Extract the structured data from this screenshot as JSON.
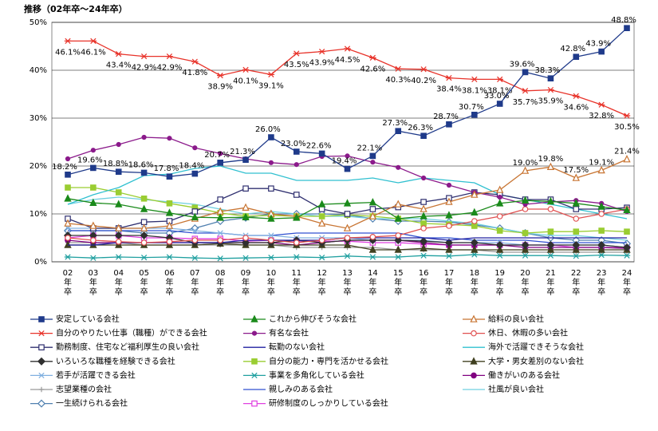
{
  "chart_data": {
    "type": "line",
    "title": "推移（02年卒～24年卒）",
    "categories": [
      "02年卒",
      "03年卒",
      "04年卒",
      "05年卒",
      "06年卒",
      "07年卒",
      "08年卒",
      "09年卒",
      "10年卒",
      "11年卒",
      "12年卒",
      "13年卒",
      "14年卒",
      "15年卒",
      "16年卒",
      "17年卒",
      "18年卒",
      "19年卒",
      "20年卒",
      "21年卒",
      "22年卒",
      "23年卒",
      "24年卒"
    ],
    "ylim": [
      0,
      50
    ],
    "yticks": [
      {
        "value": 0,
        "label": "0%"
      },
      {
        "value": 10,
        "label": "10%"
      },
      {
        "value": 20,
        "label": "20%"
      },
      {
        "value": 30,
        "label": "30%"
      },
      {
        "value": 40,
        "label": "40%"
      },
      {
        "value": 50,
        "label": "50%"
      }
    ],
    "grid": true,
    "series": [
      {
        "name": "安定している会社",
        "color": "#1f3a8a",
        "marker": "square",
        "filled": true,
        "values": [
          18.2,
          19.6,
          18.8,
          18.6,
          17.8,
          18.4,
          20.7,
          21.3,
          26.0,
          23.0,
          22.6,
          19.4,
          22.1,
          27.3,
          26.3,
          28.7,
          30.7,
          33.0,
          39.6,
          38.3,
          42.8,
          43.9,
          48.8
        ],
        "value_labels": [
          "18.2%",
          "19.6%",
          "18.8%",
          "18.6%",
          "17.8%",
          "18.4%",
          "20.7%",
          "21.3%",
          "26.0%",
          "23.0%",
          "22.6%",
          "19.4%",
          "22.1%",
          "27.3%",
          "26.3%",
          "28.7%",
          "30.7%",
          "33.0%",
          "39.6%",
          "38.3%",
          "42.8%",
          "43.9%",
          "48.8%"
        ]
      },
      {
        "name": "これから伸びそうな会社",
        "color": "#1a8a1a",
        "marker": "triangle",
        "filled": true,
        "values": [
          13.2,
          12.3,
          12,
          11,
          10.2,
          9.3,
          9.2,
          9.3,
          9,
          9.2,
          12,
          12.2,
          12.4,
          9,
          9.5,
          9.7,
          10.3,
          12.2,
          12.8,
          12.6,
          12.2,
          11.5,
          10.8
        ]
      },
      {
        "name": "給料の良い会社",
        "color": "#c87533",
        "marker": "triangle",
        "filled": false,
        "values": [
          8,
          7.5,
          7,
          7,
          7.5,
          9,
          10.5,
          11.3,
          10,
          9.5,
          8,
          7,
          9.5,
          12,
          11,
          12.5,
          14,
          15,
          19.0,
          19.8,
          17.5,
          19.1,
          21.4
        ],
        "value_labels": [
          null,
          null,
          null,
          null,
          null,
          null,
          null,
          null,
          null,
          null,
          null,
          null,
          null,
          null,
          null,
          null,
          null,
          null,
          "19.0%",
          "19.8%",
          "17.5%",
          "19.1%",
          "21.4%"
        ]
      },
      {
        "name": "自分のやりたい仕事（職種）ができる会社",
        "color": "#e8332a",
        "marker": "asterisk",
        "filled": false,
        "values": [
          46.1,
          46.1,
          43.4,
          42.9,
          42.9,
          41.8,
          38.9,
          40.1,
          39.1,
          43.5,
          43.9,
          44.5,
          42.6,
          40.3,
          40.2,
          38.4,
          38.1,
          38.1,
          35.7,
          35.9,
          34.6,
          32.8,
          30.5
        ],
        "value_labels": [
          "46.1%",
          "46.1%",
          "43.4%",
          "42.9%",
          "42.9%",
          "41.8%",
          "38.9%",
          "40.1%",
          "39.1%",
          "43.5%",
          "43.9%",
          "44.5%",
          "42.6%",
          "40.3%",
          "40.2%",
          "38.4%",
          "38.1%",
          "38.1%",
          "35.7%",
          "35.9%",
          "34.6%",
          "32.8%",
          "30.5%"
        ]
      },
      {
        "name": "有名な会社",
        "color": "#8b1a8b",
        "marker": "dot",
        "filled": true,
        "values": [
          21.5,
          23.3,
          24.5,
          26,
          25.8,
          23.8,
          22.6,
          21.5,
          20.7,
          20.3,
          22,
          22.1,
          20.8,
          19.7,
          17.5,
          16,
          14.5,
          13.5,
          12,
          12.5,
          12.8,
          12.2,
          10.5
        ]
      },
      {
        "name": "休日、休暇の多い会社",
        "color": "#e05050",
        "marker": "circle",
        "filled": false,
        "values": [
          5,
          4.5,
          4.2,
          4,
          4.2,
          4.5,
          4.5,
          5,
          4.5,
          4,
          4.5,
          5,
          5.2,
          5.5,
          7,
          7.5,
          8.5,
          9.5,
          11,
          11,
          9,
          10,
          11
        ]
      },
      {
        "name": "勤務制度、住宅など福利厚生の良い会社",
        "color": "#303070",
        "marker": "square",
        "filled": false,
        "values": [
          9,
          7,
          7,
          8.3,
          8.5,
          10.5,
          13,
          15.3,
          15.3,
          14,
          11,
          10,
          11,
          11.4,
          12.5,
          13.3,
          14.5,
          14,
          13,
          13,
          11,
          11,
          11.3
        ]
      },
      {
        "name": "転勤のない会社",
        "color": "#2020a0",
        "marker": "none",
        "filled": false,
        "values": [
          3.5,
          3.5,
          4,
          4,
          4,
          4,
          4,
          4.5,
          4.5,
          4.5,
          4.5,
          5,
          5,
          5,
          5,
          4.5,
          5,
          5,
          5,
          5,
          5,
          5,
          5
        ]
      },
      {
        "name": "海外で活躍できそうな会社",
        "color": "#30c0d0",
        "marker": "none",
        "filled": false,
        "values": [
          12,
          14,
          15.5,
          18,
          18.3,
          19.5,
          20,
          18.5,
          18.5,
          17,
          17,
          17,
          17.5,
          16.5,
          17.5,
          17,
          16.5,
          14,
          13,
          12,
          11,
          10,
          9
        ]
      },
      {
        "name": "いろいろな職種を経験できる会社",
        "color": "#303030",
        "marker": "diamond",
        "filled": true,
        "values": [
          5.5,
          5.5,
          5.5,
          5.5,
          5,
          4,
          4,
          4,
          4,
          4.5,
          4,
          4.5,
          4.5,
          4.5,
          4.3,
          4,
          4,
          3.5,
          3.5,
          3.5,
          3.5,
          3.5,
          3
        ]
      },
      {
        "name": "自分の能力・専門を活かせる会社",
        "color": "#9acd32",
        "marker": "square",
        "filled": true,
        "values": [
          15.5,
          15.5,
          14.5,
          13.2,
          12.2,
          11.3,
          10.2,
          9.5,
          9.7,
          9.5,
          9.5,
          9.8,
          9.5,
          9,
          8,
          7.8,
          7.5,
          6.5,
          6,
          6.3,
          6.3,
          6.5,
          6.3
        ]
      },
      {
        "name": "大学・男女差別のない会社",
        "color": "#404020",
        "marker": "triangle",
        "filled": true,
        "values": [
          3.5,
          3.5,
          3.5,
          3.5,
          3.5,
          3.5,
          3.8,
          3.5,
          3.5,
          3.5,
          3.5,
          3.5,
          2.5,
          2.5,
          2.8,
          2.5,
          2.5,
          2.5,
          2.5,
          2.5,
          2.5,
          2.5,
          2.5
        ]
      },
      {
        "name": "若手が活躍できる会社",
        "color": "#80b0e0",
        "marker": "cross",
        "filled": false,
        "values": [
          7,
          7,
          7,
          7,
          7,
          6.5,
          6,
          5.5,
          5.5,
          5,
          5,
          5,
          4.5,
          4.5,
          4.5,
          4,
          4,
          4,
          3.5,
          3.5,
          3.5,
          3.5,
          3
        ]
      },
      {
        "name": "事業を多角化している会社",
        "color": "#20a0a0",
        "marker": "asterisk",
        "filled": false,
        "values": [
          1,
          0.8,
          1,
          0.9,
          1,
          0.8,
          0.7,
          0.8,
          0.9,
          1,
          0.9,
          1.2,
          1,
          1,
          1.3,
          1.2,
          1.5,
          1.3,
          1.3,
          1.3,
          1.2,
          1.4,
          1.3
        ]
      },
      {
        "name": "働きがいのある会社",
        "color": "#800080",
        "marker": "circle",
        "filled": true,
        "values": [
          4.5,
          4,
          4,
          4,
          4,
          4,
          4,
          4,
          4,
          3.5,
          4,
          4.5,
          4.5,
          4.5,
          4,
          3.5,
          3.5,
          3.5,
          3,
          3,
          3,
          3,
          2.8
        ]
      },
      {
        "name": "志望業種の会社",
        "color": "#999999",
        "marker": "plus",
        "filled": false,
        "values": [
          4,
          4,
          4,
          3.5,
          3.5,
          3.5,
          3.5,
          3.5,
          3.5,
          3,
          3,
          3,
          3,
          2.5,
          2.5,
          2.5,
          2.5,
          2,
          2,
          2,
          2,
          2,
          2
        ]
      },
      {
        "name": "親しみのある会社",
        "color": "#3050d0",
        "marker": "none",
        "filled": false,
        "values": [
          6.5,
          6.5,
          6.5,
          6.5,
          6.5,
          6,
          6,
          5.5,
          5.5,
          6,
          6,
          6,
          6,
          6,
          5,
          5,
          4.5,
          4.5,
          4.5,
          4,
          4,
          4,
          4
        ]
      },
      {
        "name": "社風が良い会社",
        "color": "#70d0e0",
        "marker": "none",
        "filled": false,
        "values": [
          12,
          13,
          13.5,
          13,
          12.5,
          12,
          11,
          10,
          10.5,
          10,
          9.5,
          9.5,
          9,
          9,
          9,
          8.5,
          8,
          7,
          6,
          5.5,
          5.5,
          5,
          4.5
        ]
      },
      {
        "name": "一生続けられる会社",
        "color": "#5080b0",
        "marker": "diamond",
        "filled": false,
        "values": [
          6.5,
          6.5,
          6.5,
          6,
          6,
          7,
          8.5,
          9.2,
          10,
          10,
          10,
          9.8,
          9,
          8.5,
          8.5,
          8.3,
          7.7,
          7,
          6,
          5,
          4.5,
          4.5,
          3.8
        ]
      },
      {
        "name": "研修制度のしっかりしている会社",
        "color": "#e040e0",
        "marker": "square",
        "filled": false,
        "values": [
          5,
          5.5,
          5.5,
          5,
          5,
          4.8,
          4.8,
          4.3,
          4.5,
          4.3,
          4.3,
          4.3,
          4,
          4,
          3.7,
          3.5,
          3.5,
          3.5,
          3.5,
          3.5,
          3,
          3,
          3
        ]
      }
    ]
  }
}
